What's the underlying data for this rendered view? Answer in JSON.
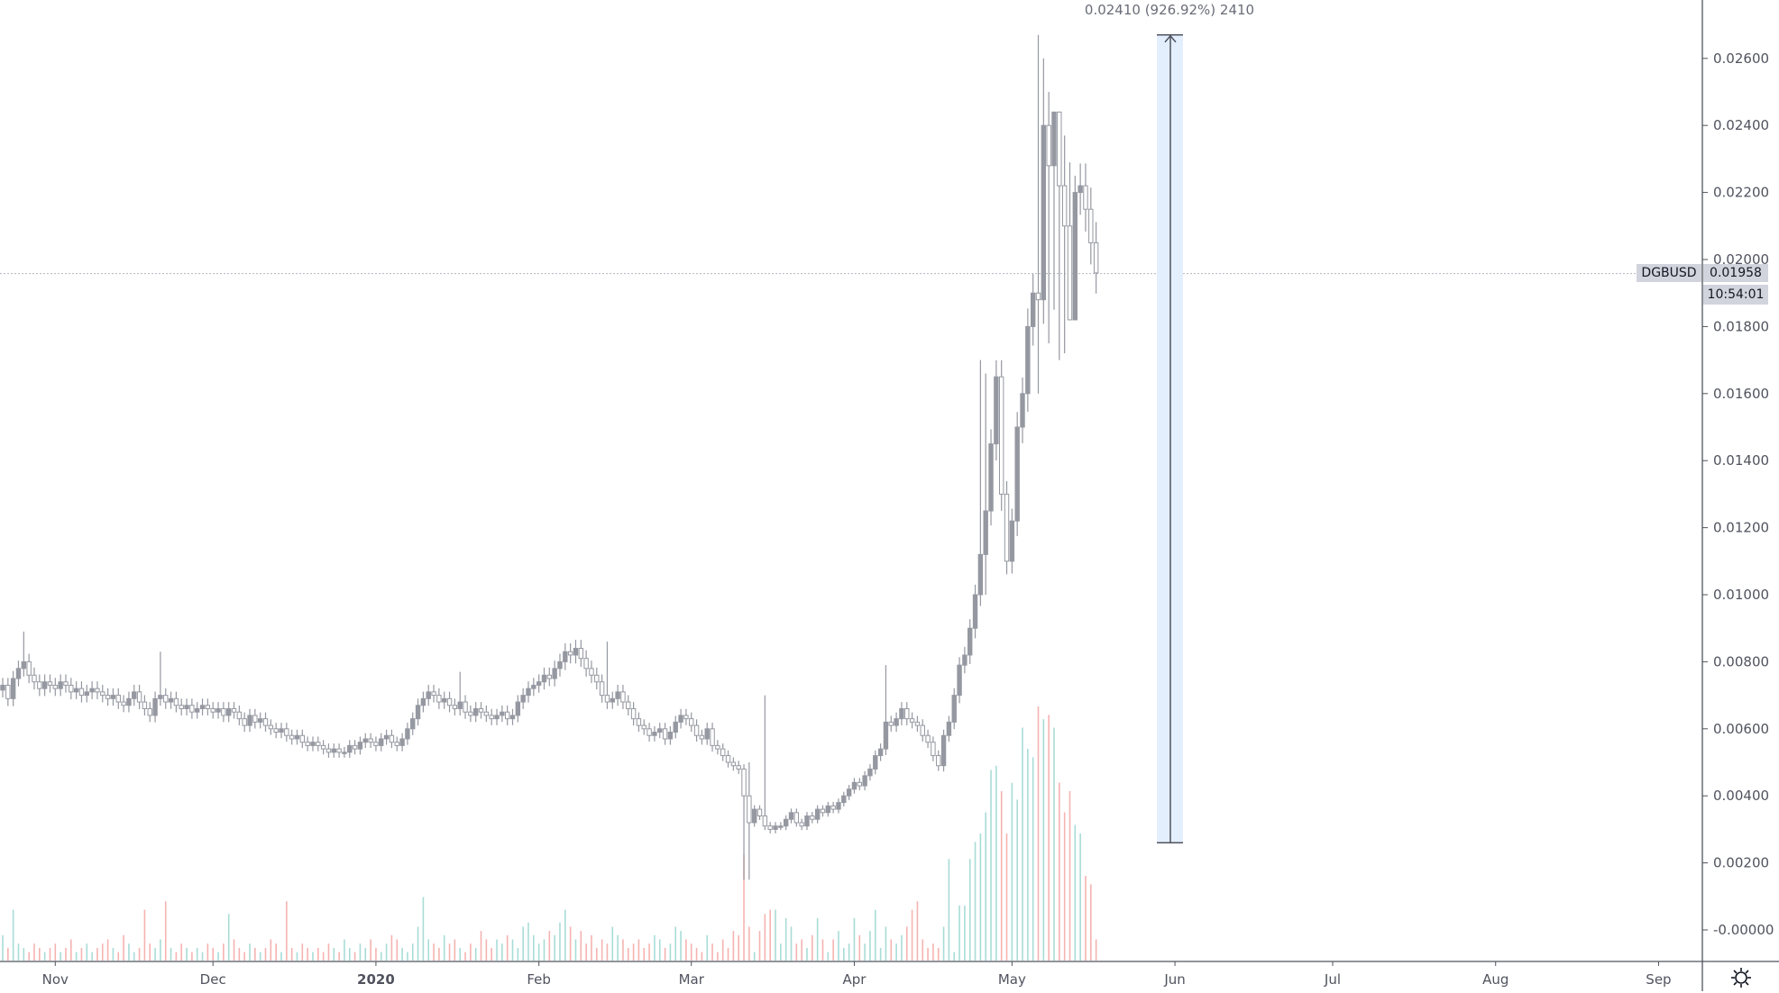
{
  "chart_data": {
    "type": "candlestick",
    "symbol": "DGBUSD",
    "last_price": "0.01958",
    "countdown": "10:54:01",
    "measure_label": "0.02410 (926.92%) 2410",
    "measure": {
      "from": 0.0026,
      "to": 0.0267
    },
    "ylim": [
      -0.0004,
      0.0277
    ],
    "y_ticks": [
      "0.02600",
      "0.02400",
      "0.02200",
      "0.02000",
      "0.01800",
      "0.01600",
      "0.01400",
      "0.01200",
      "0.01000",
      "0.00800",
      "0.00600",
      "0.00400",
      "0.00200",
      "-0.00000"
    ],
    "y_tick_values": [
      0.026,
      0.024,
      0.022,
      0.02,
      0.018,
      0.016,
      0.014,
      0.012,
      0.01,
      0.008,
      0.006,
      0.004,
      0.002,
      0.0
    ],
    "x_ticks": [
      {
        "label": "Nov",
        "date": "2019-11-01"
      },
      {
        "label": "Dec",
        "date": "2019-12-01"
      },
      {
        "label": "2020",
        "date": "2020-01-01"
      },
      {
        "label": "Feb",
        "date": "2020-02-01"
      },
      {
        "label": "Mar",
        "date": "2020-03-01"
      },
      {
        "label": "Apr",
        "date": "2020-04-01"
      },
      {
        "label": "May",
        "date": "2020-05-01"
      },
      {
        "label": "Jun",
        "date": "2020-06-01"
      },
      {
        "label": "Jul",
        "date": "2020-07-01"
      },
      {
        "label": "Aug",
        "date": "2020-08-01"
      },
      {
        "label": "Sep",
        "date": "2020-09-01"
      }
    ],
    "first_date": "2019-10-22",
    "close": [
      0.0073,
      0.0069,
      0.0075,
      0.0078,
      0.008,
      0.0076,
      0.0074,
      0.0072,
      0.0074,
      0.0073,
      0.0072,
      0.0074,
      0.0073,
      0.0071,
      0.0072,
      0.007,
      0.0071,
      0.0072,
      0.0071,
      0.007,
      0.0069,
      0.007,
      0.0068,
      0.0067,
      0.0069,
      0.0071,
      0.0068,
      0.0066,
      0.0064,
      0.0069,
      0.007,
      0.0068,
      0.0069,
      0.0067,
      0.0066,
      0.0067,
      0.0065,
      0.0066,
      0.0067,
      0.0066,
      0.0065,
      0.0066,
      0.0064,
      0.0066,
      0.0065,
      0.0063,
      0.0061,
      0.0064,
      0.0062,
      0.0063,
      0.0061,
      0.006,
      0.0059,
      0.006,
      0.0058,
      0.0057,
      0.0058,
      0.0056,
      0.0055,
      0.0056,
      0.0055,
      0.0054,
      0.0053,
      0.0054,
      0.0053,
      0.0053,
      0.0055,
      0.0054,
      0.0056,
      0.0057,
      0.0056,
      0.0055,
      0.0057,
      0.0058,
      0.0056,
      0.0055,
      0.0057,
      0.006,
      0.0063,
      0.0067,
      0.0069,
      0.0071,
      0.007,
      0.0068,
      0.0069,
      0.0067,
      0.0066,
      0.0068,
      0.0065,
      0.0064,
      0.0066,
      0.0065,
      0.0064,
      0.0063,
      0.0064,
      0.0065,
      0.0063,
      0.0064,
      0.0068,
      0.007,
      0.0072,
      0.0073,
      0.0074,
      0.0076,
      0.0075,
      0.0078,
      0.008,
      0.0083,
      0.0082,
      0.0084,
      0.0081,
      0.0078,
      0.0076,
      0.0074,
      0.007,
      0.0068,
      0.0069,
      0.0071,
      0.0068,
      0.0066,
      0.0063,
      0.0061,
      0.006,
      0.0058,
      0.0059,
      0.006,
      0.0057,
      0.0059,
      0.0062,
      0.0064,
      0.0063,
      0.0061,
      0.0058,
      0.0057,
      0.006,
      0.0055,
      0.0054,
      0.0052,
      0.005,
      0.0049,
      0.0048,
      0.004,
      0.0032,
      0.0036,
      0.0034,
      0.0031,
      0.003,
      0.0031,
      0.0031,
      0.0033,
      0.0035,
      0.0032,
      0.0031,
      0.0034,
      0.0033,
      0.0036,
      0.0035,
      0.0037,
      0.0036,
      0.0038,
      0.004,
      0.0042,
      0.0044,
      0.0043,
      0.0046,
      0.0048,
      0.0052,
      0.0054,
      0.0062,
      0.0061,
      0.0063,
      0.0066,
      0.0063,
      0.0062,
      0.0061,
      0.0058,
      0.0056,
      0.0052,
      0.0049,
      0.0058,
      0.0062,
      0.007,
      0.0079,
      0.0082,
      0.009,
      0.01,
      0.0112,
      0.0125,
      0.0145,
      0.0165,
      0.013,
      0.011,
      0.0122,
      0.015,
      0.016,
      0.018,
      0.019,
      0.0188,
      0.024,
      0.0228,
      0.0244,
      0.0222,
      0.021,
      0.0182,
      0.022,
      0.0222,
      0.0215,
      0.0205,
      0.0196
    ],
    "wick_overrides": {
      "4": [
        0.0089,
        null
      ],
      "30": [
        0.0083,
        null
      ],
      "87": [
        0.0077,
        null
      ],
      "115": [
        0.0086,
        null
      ],
      "141": [
        null,
        0.0015
      ],
      "142": [
        0.005,
        0.0015
      ],
      "145": [
        0.007,
        null
      ],
      "168": [
        0.0079,
        null
      ],
      "186": [
        0.017,
        null
      ],
      "187": [
        0.0166,
        0.01
      ],
      "197": [
        0.0267,
        0.016
      ],
      "198": [
        0.026,
        null
      ],
      "199": [
        0.025,
        0.0175
      ],
      "200": [
        0.023,
        0.0185
      ],
      "201": [
        0.0225,
        0.017
      ],
      "202": [
        0.0237,
        0.0172
      ],
      "203": [
        0.0229,
        0.0183
      ],
      "204": [
        0.0225,
        0.019
      ]
    },
    "volume": [
      6,
      3,
      12,
      4,
      3,
      2,
      4,
      3,
      2,
      3,
      4,
      2,
      3,
      5,
      2,
      3,
      4,
      2,
      3,
      4,
      5,
      3,
      2,
      6,
      4,
      2,
      3,
      12,
      4,
      3,
      5,
      14,
      3,
      2,
      4,
      3,
      2,
      3,
      2,
      4,
      3,
      2,
      4,
      11,
      5,
      3,
      2,
      4,
      3,
      2,
      3,
      5,
      4,
      2,
      14,
      3,
      2,
      4,
      3,
      2,
      3,
      2,
      4,
      3,
      2,
      5,
      3,
      2,
      4,
      3,
      5,
      3,
      2,
      4,
      6,
      5,
      3,
      2,
      4,
      8,
      15,
      5,
      4,
      3,
      6,
      4,
      5,
      3,
      2,
      4,
      3,
      7,
      5,
      3,
      5,
      4,
      6,
      5,
      3,
      8,
      9,
      6,
      4,
      5,
      7,
      6,
      9,
      12,
      8,
      5,
      7,
      4,
      6,
      3,
      5,
      4,
      8,
      6,
      5,
      3,
      4,
      5,
      3,
      4,
      6,
      5,
      3,
      4,
      8,
      7,
      5,
      4,
      3,
      2,
      6,
      4,
      2,
      5,
      3,
      7,
      6,
      25,
      8,
      2,
      7,
      11,
      12,
      12,
      4,
      10,
      8,
      4,
      5,
      3,
      6,
      10,
      5,
      2,
      5,
      7,
      3,
      4,
      10,
      6,
      4,
      7,
      12,
      3,
      8,
      5,
      4,
      6,
      8,
      12,
      14,
      5,
      3,
      4,
      3,
      8,
      24,
      2,
      13,
      13,
      24,
      28,
      30,
      35,
      45,
      46,
      40,
      30,
      42,
      38,
      55,
      50,
      48,
      60,
      57,
      58,
      55,
      42,
      35,
      40,
      32,
      30,
      20,
      18,
      5
    ],
    "colors": {
      "candle": "#9598a1",
      "up_volume": "#a8dcd6",
      "down_volume": "#f5b3b0",
      "measure_fill": "#e3effd",
      "measure_line": "#50535e",
      "axis": "#50535e"
    }
  },
  "settings_icon": "gear-icon"
}
